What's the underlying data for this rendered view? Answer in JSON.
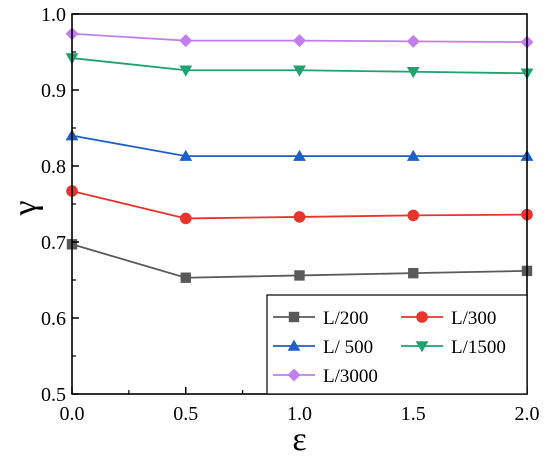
{
  "chart_data": {
    "type": "line",
    "title": "",
    "xlabel": "ε",
    "ylabel": "γ",
    "xlim": [
      0.0,
      2.0
    ],
    "ylim": [
      0.5,
      1.0
    ],
    "x": [
      0.0,
      0.5,
      1.0,
      1.5,
      2.0
    ],
    "x_tick_labels": [
      "0.0",
      "0.5",
      "1.0",
      "1.5",
      "2.0"
    ],
    "y_tick_labels": [
      "0.5",
      "0.6",
      "0.7",
      "0.8",
      "0.9",
      "1.0"
    ],
    "grid": false,
    "legend_position": "bottom-right",
    "series": [
      {
        "name": "L/200",
        "color": "#5a5a5a",
        "marker": "square",
        "values": [
          0.697,
          0.653,
          0.656,
          0.659,
          0.662
        ]
      },
      {
        "name": "L/300",
        "color": "#e8342c",
        "marker": "circle",
        "values": [
          0.767,
          0.731,
          0.733,
          0.735,
          0.736
        ]
      },
      {
        "name": "L/ 500",
        "color": "#1f5fc8",
        "marker": "triangle-up",
        "values": [
          0.84,
          0.813,
          0.813,
          0.813,
          0.813
        ]
      },
      {
        "name": "L/1500",
        "color": "#1ea370",
        "marker": "triangle-down",
        "values": [
          0.942,
          0.926,
          0.926,
          0.924,
          0.922
        ]
      },
      {
        "name": "L/3000",
        "color": "#c27ef0",
        "marker": "diamond",
        "values": [
          0.974,
          0.965,
          0.965,
          0.964,
          0.963
        ]
      }
    ]
  }
}
